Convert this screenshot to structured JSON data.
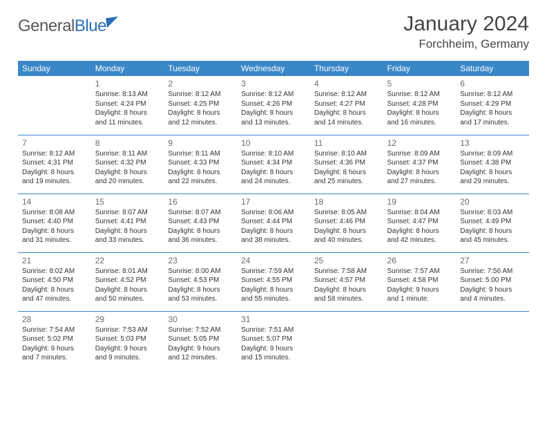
{
  "brand": {
    "part1": "General",
    "part2": "Blue"
  },
  "title": "January 2024",
  "location": "Forchheim, Germany",
  "dayHeaders": [
    "Sunday",
    "Monday",
    "Tuesday",
    "Wednesday",
    "Thursday",
    "Friday",
    "Saturday"
  ],
  "colors": {
    "header_bg": "#3a87c8",
    "header_text": "#ffffff",
    "row_border": "#3a87c8",
    "daynum": "#6b6b6b",
    "body_text": "#333333",
    "background": "#ffffff",
    "brand_gray": "#5a5a5a",
    "brand_blue": "#2b6fb5"
  },
  "typography": {
    "title_fontsize": 30,
    "location_fontsize": 17,
    "header_fontsize": 12,
    "cell_fontsize": 10,
    "daynum_fontsize": 12
  },
  "weeks": [
    [
      null,
      {
        "n": "1",
        "sunrise": "Sunrise: 8:13 AM",
        "sunset": "Sunset: 4:24 PM",
        "day1": "Daylight: 8 hours",
        "day2": "and 11 minutes."
      },
      {
        "n": "2",
        "sunrise": "Sunrise: 8:12 AM",
        "sunset": "Sunset: 4:25 PM",
        "day1": "Daylight: 8 hours",
        "day2": "and 12 minutes."
      },
      {
        "n": "3",
        "sunrise": "Sunrise: 8:12 AM",
        "sunset": "Sunset: 4:26 PM",
        "day1": "Daylight: 8 hours",
        "day2": "and 13 minutes."
      },
      {
        "n": "4",
        "sunrise": "Sunrise: 8:12 AM",
        "sunset": "Sunset: 4:27 PM",
        "day1": "Daylight: 8 hours",
        "day2": "and 14 minutes."
      },
      {
        "n": "5",
        "sunrise": "Sunrise: 8:12 AM",
        "sunset": "Sunset: 4:28 PM",
        "day1": "Daylight: 8 hours",
        "day2": "and 16 minutes."
      },
      {
        "n": "6",
        "sunrise": "Sunrise: 8:12 AM",
        "sunset": "Sunset: 4:29 PM",
        "day1": "Daylight: 8 hours",
        "day2": "and 17 minutes."
      }
    ],
    [
      {
        "n": "7",
        "sunrise": "Sunrise: 8:12 AM",
        "sunset": "Sunset: 4:31 PM",
        "day1": "Daylight: 8 hours",
        "day2": "and 19 minutes."
      },
      {
        "n": "8",
        "sunrise": "Sunrise: 8:11 AM",
        "sunset": "Sunset: 4:32 PM",
        "day1": "Daylight: 8 hours",
        "day2": "and 20 minutes."
      },
      {
        "n": "9",
        "sunrise": "Sunrise: 8:11 AM",
        "sunset": "Sunset: 4:33 PM",
        "day1": "Daylight: 8 hours",
        "day2": "and 22 minutes."
      },
      {
        "n": "10",
        "sunrise": "Sunrise: 8:10 AM",
        "sunset": "Sunset: 4:34 PM",
        "day1": "Daylight: 8 hours",
        "day2": "and 24 minutes."
      },
      {
        "n": "11",
        "sunrise": "Sunrise: 8:10 AM",
        "sunset": "Sunset: 4:36 PM",
        "day1": "Daylight: 8 hours",
        "day2": "and 25 minutes."
      },
      {
        "n": "12",
        "sunrise": "Sunrise: 8:09 AM",
        "sunset": "Sunset: 4:37 PM",
        "day1": "Daylight: 8 hours",
        "day2": "and 27 minutes."
      },
      {
        "n": "13",
        "sunrise": "Sunrise: 8:09 AM",
        "sunset": "Sunset: 4:38 PM",
        "day1": "Daylight: 8 hours",
        "day2": "and 29 minutes."
      }
    ],
    [
      {
        "n": "14",
        "sunrise": "Sunrise: 8:08 AM",
        "sunset": "Sunset: 4:40 PM",
        "day1": "Daylight: 8 hours",
        "day2": "and 31 minutes."
      },
      {
        "n": "15",
        "sunrise": "Sunrise: 8:07 AM",
        "sunset": "Sunset: 4:41 PM",
        "day1": "Daylight: 8 hours",
        "day2": "and 33 minutes."
      },
      {
        "n": "16",
        "sunrise": "Sunrise: 8:07 AM",
        "sunset": "Sunset: 4:43 PM",
        "day1": "Daylight: 8 hours",
        "day2": "and 36 minutes."
      },
      {
        "n": "17",
        "sunrise": "Sunrise: 8:06 AM",
        "sunset": "Sunset: 4:44 PM",
        "day1": "Daylight: 8 hours",
        "day2": "and 38 minutes."
      },
      {
        "n": "18",
        "sunrise": "Sunrise: 8:05 AM",
        "sunset": "Sunset: 4:46 PM",
        "day1": "Daylight: 8 hours",
        "day2": "and 40 minutes."
      },
      {
        "n": "19",
        "sunrise": "Sunrise: 8:04 AM",
        "sunset": "Sunset: 4:47 PM",
        "day1": "Daylight: 8 hours",
        "day2": "and 42 minutes."
      },
      {
        "n": "20",
        "sunrise": "Sunrise: 8:03 AM",
        "sunset": "Sunset: 4:49 PM",
        "day1": "Daylight: 8 hours",
        "day2": "and 45 minutes."
      }
    ],
    [
      {
        "n": "21",
        "sunrise": "Sunrise: 8:02 AM",
        "sunset": "Sunset: 4:50 PM",
        "day1": "Daylight: 8 hours",
        "day2": "and 47 minutes."
      },
      {
        "n": "22",
        "sunrise": "Sunrise: 8:01 AM",
        "sunset": "Sunset: 4:52 PM",
        "day1": "Daylight: 8 hours",
        "day2": "and 50 minutes."
      },
      {
        "n": "23",
        "sunrise": "Sunrise: 8:00 AM",
        "sunset": "Sunset: 4:53 PM",
        "day1": "Daylight: 8 hours",
        "day2": "and 53 minutes."
      },
      {
        "n": "24",
        "sunrise": "Sunrise: 7:59 AM",
        "sunset": "Sunset: 4:55 PM",
        "day1": "Daylight: 8 hours",
        "day2": "and 55 minutes."
      },
      {
        "n": "25",
        "sunrise": "Sunrise: 7:58 AM",
        "sunset": "Sunset: 4:57 PM",
        "day1": "Daylight: 8 hours",
        "day2": "and 58 minutes."
      },
      {
        "n": "26",
        "sunrise": "Sunrise: 7:57 AM",
        "sunset": "Sunset: 4:58 PM",
        "day1": "Daylight: 9 hours",
        "day2": "and 1 minute."
      },
      {
        "n": "27",
        "sunrise": "Sunrise: 7:56 AM",
        "sunset": "Sunset: 5:00 PM",
        "day1": "Daylight: 9 hours",
        "day2": "and 4 minutes."
      }
    ],
    [
      {
        "n": "28",
        "sunrise": "Sunrise: 7:54 AM",
        "sunset": "Sunset: 5:02 PM",
        "day1": "Daylight: 9 hours",
        "day2": "and 7 minutes."
      },
      {
        "n": "29",
        "sunrise": "Sunrise: 7:53 AM",
        "sunset": "Sunset: 5:03 PM",
        "day1": "Daylight: 9 hours",
        "day2": "and 9 minutes."
      },
      {
        "n": "30",
        "sunrise": "Sunrise: 7:52 AM",
        "sunset": "Sunset: 5:05 PM",
        "day1": "Daylight: 9 hours",
        "day2": "and 12 minutes."
      },
      {
        "n": "31",
        "sunrise": "Sunrise: 7:51 AM",
        "sunset": "Sunset: 5:07 PM",
        "day1": "Daylight: 9 hours",
        "day2": "and 15 minutes."
      },
      null,
      null,
      null
    ]
  ]
}
